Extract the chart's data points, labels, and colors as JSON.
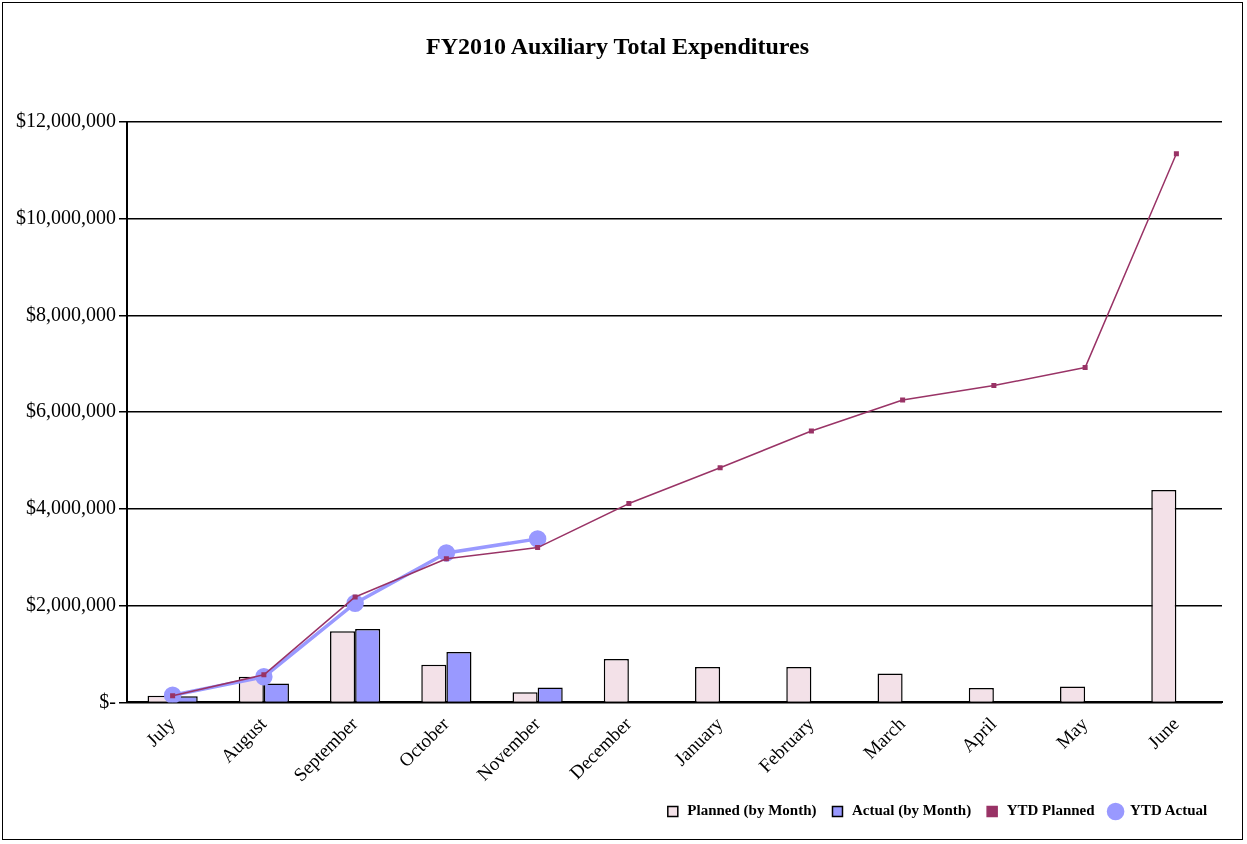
{
  "chart_data": {
    "type": "bar",
    "title": "FY2010 Auxiliary Total Expenditures",
    "categories": [
      "July",
      "August",
      "September",
      "October",
      "November",
      "December",
      "January",
      "February",
      "March",
      "April",
      "May",
      "June"
    ],
    "series": [
      {
        "name": "Planned (by Month)",
        "color": "#f3e1e8",
        "values": [
          140000,
          530000,
          1470000,
          780000,
          210000,
          900000,
          730000,
          730000,
          600000,
          300000,
          330000,
          4390000
        ]
      },
      {
        "name": "Actual (by Month)",
        "color": "#9999ff",
        "values": [
          130000,
          390000,
          1520000,
          1040000,
          310000,
          null,
          null,
          null,
          null,
          null,
          null,
          null
        ]
      },
      {
        "name": "YTD Planned",
        "type": "line",
        "color": "#993366",
        "marker": "square",
        "values": [
          140000,
          570000,
          2180000,
          2970000,
          3200000,
          4110000,
          4850000,
          5610000,
          6250000,
          6550000,
          6920000,
          11340000
        ]
      },
      {
        "name": "YTD Actual",
        "type": "line",
        "color": "#9999ff",
        "marker": "circle",
        "values": [
          150000,
          530000,
          2050000,
          3090000,
          3380000,
          null,
          null,
          null,
          null,
          null,
          null,
          null
        ]
      }
    ],
    "ylim": [
      0,
      12000000
    ],
    "yticks": [
      {
        "value": 0,
        "label": "$-"
      },
      {
        "value": 2000000,
        "label": "$2,000,000"
      },
      {
        "value": 4000000,
        "label": "$4,000,000"
      },
      {
        "value": 6000000,
        "label": "$6,000,000"
      },
      {
        "value": 8000000,
        "label": "$8,000,000"
      },
      {
        "value": 10000000,
        "label": "$10,000,000"
      },
      {
        "value": 12000000,
        "label": "$12,000,000"
      }
    ],
    "grid": "y",
    "legend": "bottom right"
  }
}
